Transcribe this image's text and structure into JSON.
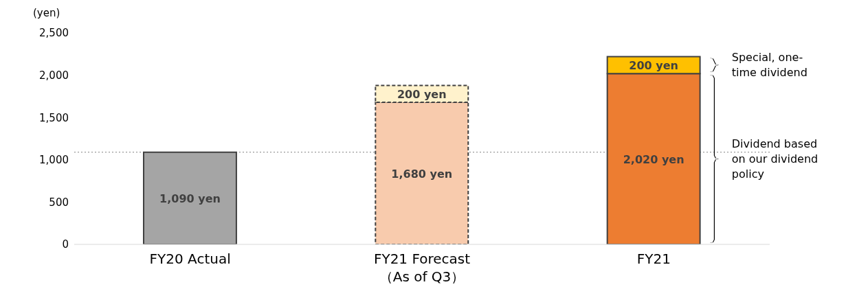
{
  "chart_data": {
    "type": "bar",
    "stacked": true,
    "ylabel": "(yen)",
    "categories": [
      "FY20 Actual",
      "FY21 Forecast\n（As of Q3）",
      "FY21"
    ],
    "series": [
      {
        "colors": [
          "#a5a5a5",
          "#f8cbad",
          "#ed7d31"
        ],
        "values": [
          1090,
          1680,
          2020
        ],
        "value_labels": [
          "1,090 yen",
          "1,680 yen",
          "2,020 yen"
        ]
      },
      {
        "colors": [
          "#ffffff",
          "#fff2cc",
          "#ffc000"
        ],
        "values": [
          null,
          200,
          200
        ],
        "value_labels": [
          null,
          "200 yen",
          "200 yen"
        ]
      }
    ],
    "ylim": [
      0,
      2500
    ],
    "yticks": [
      {
        "value": 0,
        "label": "0"
      },
      {
        "value": 500,
        "label": "500"
      },
      {
        "value": 1000,
        "label": "1,000"
      },
      {
        "value": 1500,
        "label": "1,500"
      },
      {
        "value": 2000,
        "label": "2,000"
      },
      {
        "value": 2500,
        "label": "2,500"
      }
    ],
    "grid": false,
    "legend": false,
    "ref_lines": [
      {
        "axis": "y",
        "value": 1090,
        "color": "#7f7f7f",
        "line_style": "dotted"
      }
    ],
    "annotations": [
      "Special, one-time dividend",
      "Dividend based on our dividend policy"
    ]
  }
}
